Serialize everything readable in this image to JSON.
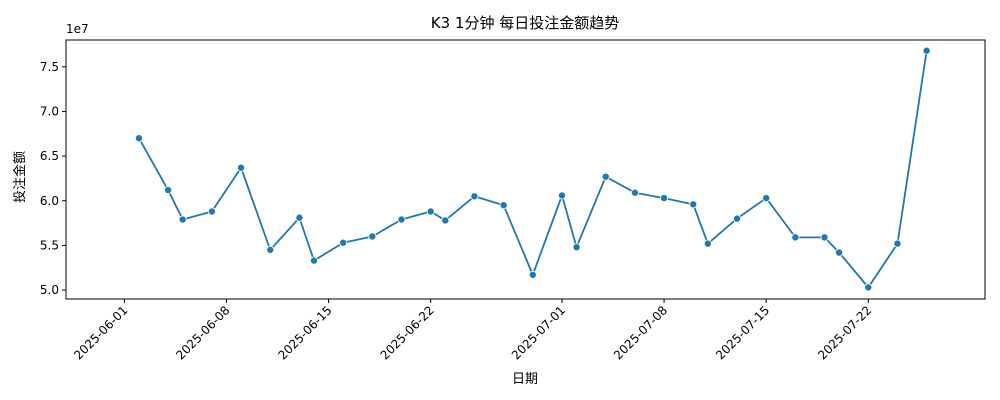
{
  "chart_data": {
    "type": "line",
    "title": "K3 1分钟 每日投注金额趋势",
    "xlabel": "日期",
    "ylabel": "投注金额",
    "y_scale_label": "1e7",
    "y_scale_factor": 10000000,
    "xlim": [
      "2025-05-28",
      "2025-07-30"
    ],
    "ylim": [
      4.9,
      7.8
    ],
    "yticks": [
      5.0,
      5.5,
      6.0,
      6.5,
      7.0,
      7.5
    ],
    "ytick_labels": [
      "5.0",
      "5.5",
      "6.0",
      "6.5",
      "7.0",
      "7.5"
    ],
    "xticks": [
      "2025-06-01",
      "2025-06-08",
      "2025-06-15",
      "2025-06-22",
      "2025-07-01",
      "2025-07-08",
      "2025-07-15",
      "2025-07-22"
    ],
    "xtick_labels": [
      "2025-06-01",
      "2025-06-08",
      "2025-06-15",
      "2025-06-22",
      "2025-07-01",
      "2025-07-08",
      "2025-07-15",
      "2025-07-22"
    ],
    "grid": false,
    "legend": false,
    "line_color": "#1f77b4",
    "marker": "circle",
    "series": [
      {
        "x": [
          "2025-06-02",
          "2025-06-04",
          "2025-06-05",
          "2025-06-07",
          "2025-06-09",
          "2025-06-11",
          "2025-06-13",
          "2025-06-14",
          "2025-06-16",
          "2025-06-18",
          "2025-06-20",
          "2025-06-22",
          "2025-06-23",
          "2025-06-25",
          "2025-06-27",
          "2025-06-29",
          "2025-07-01",
          "2025-07-02",
          "2025-07-04",
          "2025-07-06",
          "2025-07-08",
          "2025-07-10",
          "2025-07-11",
          "2025-07-13",
          "2025-07-15",
          "2025-07-17",
          "2025-07-19",
          "2025-07-20",
          "2025-07-22",
          "2025-07-24",
          "2025-07-26"
        ],
        "values": [
          6.7,
          6.12,
          5.79,
          5.88,
          6.37,
          5.45,
          5.81,
          5.33,
          5.53,
          5.6,
          5.79,
          5.88,
          5.78,
          6.05,
          5.95,
          5.17,
          6.06,
          5.48,
          6.27,
          6.09,
          6.03,
          5.96,
          5.52,
          5.8,
          6.03,
          5.59,
          5.59,
          5.42,
          5.03,
          5.52,
          7.68
        ]
      }
    ]
  }
}
